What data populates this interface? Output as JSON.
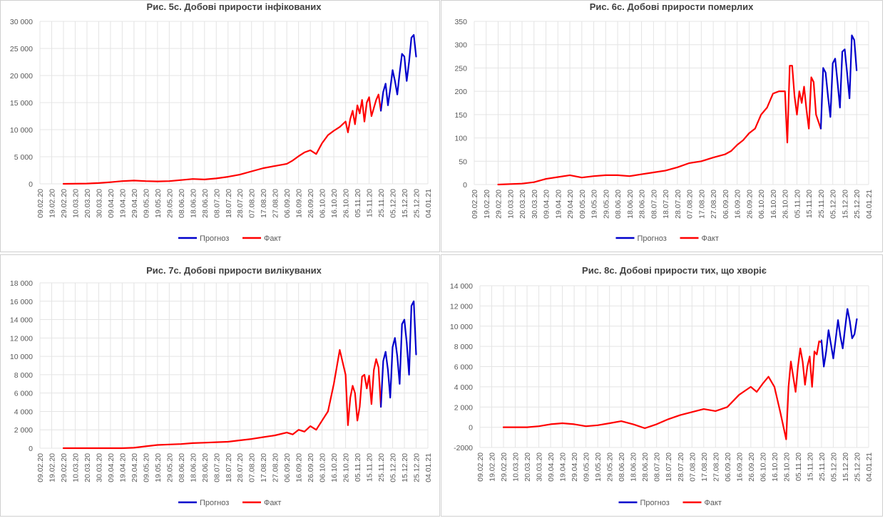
{
  "chart_data": [
    {
      "type": "line",
      "title": "Рис. 5с. Добові прирости інфікованих",
      "x_tick_labels": [
        "09.02.20",
        "19.02.20",
        "29.02.20",
        "10.03.20",
        "20.03.20",
        "30.03.20",
        "09.04.20",
        "19.04.20",
        "29.04.20",
        "09.05.20",
        "19.05.20",
        "29.05.20",
        "08.06.20",
        "18.06.20",
        "28.06.20",
        "08.07.20",
        "18.07.20",
        "28.07.20",
        "07.08.20",
        "17.08.20",
        "27.08.20",
        "06.09.20",
        "16.09.20",
        "26.09.20",
        "06.10.20",
        "16.10.20",
        "26.10.20",
        "05.11.20",
        "15.11.20",
        "25.11.20",
        "05.12.20",
        "15.12.20",
        "25.12.20",
        "04.01.21"
      ],
      "y_tick_labels": [
        "0",
        "5 000",
        "10 000",
        "15 000",
        "20 000",
        "25 000",
        "30 000"
      ],
      "ylim": [
        0,
        30000
      ],
      "series": [
        {
          "name": "Прогноз",
          "color": "#0000cc",
          "x": [
            290,
            292,
            294,
            296,
            298,
            300,
            302,
            304,
            306,
            308,
            310,
            312,
            314,
            316,
            318,
            320
          ],
          "y": [
            13500,
            17000,
            18500,
            14500,
            17500,
            21000,
            19000,
            16500,
            20500,
            24000,
            23500,
            19000,
            22500,
            27000,
            27500,
            23500
          ]
        },
        {
          "name": "Факт",
          "color": "#ff0000",
          "x": [
            20,
            40,
            50,
            60,
            70,
            80,
            90,
            100,
            110,
            120,
            130,
            140,
            150,
            160,
            170,
            180,
            190,
            200,
            210,
            215,
            220,
            225,
            230,
            235,
            240,
            245,
            250,
            255,
            260,
            262,
            264,
            266,
            268,
            270,
            272,
            274,
            276,
            278,
            280,
            282,
            284,
            286,
            288,
            290
          ],
          "y": [
            0,
            50,
            150,
            300,
            500,
            600,
            500,
            450,
            500,
            700,
            900,
            800,
            1000,
            1300,
            1700,
            2300,
            2900,
            3300,
            3700,
            4300,
            5100,
            5800,
            6200,
            5500,
            7500,
            9000,
            9800,
            10500,
            11500,
            9500,
            12000,
            13500,
            11000,
            14500,
            13000,
            15500,
            11500,
            15000,
            16000,
            12500,
            14000,
            15500,
            16500,
            13500
          ]
        }
      ],
      "legend": {
        "position": "bottom",
        "entries": [
          "Прогноз",
          "Факт"
        ]
      }
    },
    {
      "type": "line",
      "title": "Рис. 6с. Добові прирости померлих",
      "x_tick_labels": [
        "09.02.20",
        "19.02.20",
        "29.02.20",
        "10.03.20",
        "20.03.20",
        "30.03.20",
        "09.04.20",
        "19.04.20",
        "29.04.20",
        "09.05.20",
        "19.05.20",
        "29.05.20",
        "08.06.20",
        "18.06.20",
        "28.06.20",
        "08.07.20",
        "18.07.20",
        "28.07.20",
        "07.08.20",
        "17.08.20",
        "27.08.20",
        "06.09.20",
        "16.09.20",
        "26.09.20",
        "06.10.20",
        "16.10.20",
        "26.10.20",
        "05.11.20",
        "15.11.20",
        "25.11.20",
        "05.12.20",
        "15.12.20",
        "25.12.20",
        "04.01.21"
      ],
      "y_tick_labels": [
        "0",
        "50",
        "100",
        "150",
        "200",
        "250",
        "300",
        "350"
      ],
      "ylim": [
        0,
        350
      ],
      "series": [
        {
          "name": "Прогноз",
          "color": "#0000cc",
          "x": [
            290,
            292,
            294,
            296,
            298,
            300,
            302,
            304,
            306,
            308,
            310,
            312,
            314,
            316,
            318,
            320
          ],
          "y": [
            120,
            250,
            240,
            190,
            145,
            260,
            270,
            220,
            165,
            285,
            290,
            240,
            185,
            320,
            310,
            245
          ]
        },
        {
          "name": "Факт",
          "color": "#ff0000",
          "x": [
            20,
            40,
            50,
            60,
            70,
            80,
            90,
            100,
            110,
            120,
            130,
            140,
            150,
            160,
            170,
            180,
            190,
            200,
            210,
            215,
            220,
            225,
            230,
            235,
            240,
            245,
            250,
            255,
            260,
            262,
            264,
            266,
            268,
            270,
            272,
            274,
            276,
            278,
            280,
            282,
            284,
            286,
            288,
            290
          ],
          "y": [
            0,
            2,
            5,
            12,
            16,
            20,
            15,
            18,
            20,
            20,
            18,
            22,
            26,
            30,
            37,
            46,
            50,
            58,
            65,
            72,
            85,
            95,
            110,
            120,
            150,
            165,
            195,
            200,
            200,
            90,
            255,
            255,
            190,
            150,
            200,
            175,
            210,
            160,
            120,
            230,
            220,
            150,
            135,
            120
          ]
        }
      ],
      "legend": {
        "position": "bottom",
        "entries": [
          "Прогноз",
          "Факт"
        ]
      }
    },
    {
      "type": "line",
      "title": "Рис. 7с. Добові прирости вилікуваних",
      "x_tick_labels": [
        "09.02.20",
        "19.02.20",
        "29.02.20",
        "10.03.20",
        "20.03.20",
        "30.03.20",
        "09.04.20",
        "19.04.20",
        "29.04.20",
        "09.05.20",
        "19.05.20",
        "29.05.20",
        "08.06.20",
        "18.06.20",
        "28.06.20",
        "08.07.20",
        "18.07.20",
        "28.07.20",
        "07.08.20",
        "17.08.20",
        "27.08.20",
        "06.09.20",
        "16.09.20",
        "26.09.20",
        "06.10.20",
        "16.10.20",
        "26.10.20",
        "05.11.20",
        "15.11.20",
        "25.11.20",
        "05.12.20",
        "15.12.20",
        "25.12.20",
        "04.01.21"
      ],
      "y_tick_labels": [
        "0",
        "2 000",
        "4 000",
        "6 000",
        "8 000",
        "10 000",
        "12 000",
        "14 000",
        "16 000",
        "18 000"
      ],
      "ylim": [
        0,
        18000
      ],
      "series": [
        {
          "name": "Прогноз",
          "color": "#0000cc",
          "x": [
            290,
            292,
            294,
            296,
            298,
            300,
            302,
            304,
            306,
            308,
            310,
            312,
            314,
            316,
            318,
            320
          ],
          "y": [
            4500,
            9500,
            10500,
            8500,
            5500,
            11000,
            12000,
            10000,
            7000,
            13500,
            14000,
            11500,
            8000,
            15500,
            16000,
            10200
          ]
        },
        {
          "name": "Факт",
          "color": "#ff0000",
          "x": [
            20,
            40,
            50,
            60,
            70,
            80,
            90,
            100,
            110,
            120,
            130,
            140,
            150,
            160,
            170,
            180,
            190,
            200,
            210,
            215,
            220,
            225,
            230,
            235,
            240,
            245,
            250,
            255,
            260,
            262,
            264,
            266,
            268,
            270,
            272,
            274,
            276,
            278,
            280,
            282,
            284,
            286,
            288,
            290
          ],
          "y": [
            0,
            0,
            0,
            0,
            0,
            50,
            200,
            350,
            400,
            450,
            550,
            600,
            650,
            700,
            850,
            1000,
            1200,
            1400,
            1700,
            1500,
            2000,
            1800,
            2400,
            2000,
            3000,
            4000,
            7000,
            10700,
            8000,
            2500,
            5500,
            6800,
            6000,
            3000,
            4500,
            7800,
            8000,
            6500,
            7900,
            4800,
            8500,
            9700,
            8800,
            4500
          ]
        }
      ],
      "legend": {
        "position": "bottom",
        "entries": [
          "Прогноз",
          "Факт"
        ]
      }
    },
    {
      "type": "line",
      "title": "Рис. 8с. Добові прирости тих, що хворіє",
      "x_tick_labels": [
        "09.02.20",
        "19.02.20",
        "29.02.20",
        "10.03.20",
        "20.03.20",
        "30.03.20",
        "09.04.20",
        "19.04.20",
        "29.04.20",
        "09.05.20",
        "19.05.20",
        "29.05.20",
        "08.06.20",
        "18.06.20",
        "28.06.20",
        "08.07.20",
        "18.07.20",
        "28.07.20",
        "07.08.20",
        "17.08.20",
        "27.08.20",
        "06.09.20",
        "16.09.20",
        "26.09.20",
        "06.10.20",
        "16.10.20",
        "26.10.20",
        "05.11.20",
        "15.11.20",
        "25.11.20",
        "05.12.20",
        "15.12.20",
        "25.12.20",
        "04.01.21"
      ],
      "y_tick_labels": [
        "-2000",
        "0",
        "2 000",
        "4 000",
        "6 000",
        "8 000",
        "10 000",
        "12 000",
        "14 000"
      ],
      "ylim": [
        -2000,
        14000
      ],
      "series": [
        {
          "name": "Прогноз",
          "color": "#0000cc",
          "x": [
            290,
            292,
            294,
            296,
            298,
            300,
            302,
            304,
            306,
            308,
            310,
            312,
            314,
            316,
            318,
            320
          ],
          "y": [
            8600,
            6000,
            7500,
            9600,
            8200,
            6800,
            8700,
            10600,
            9000,
            7800,
            9800,
            11700,
            10500,
            8800,
            9200,
            10700
          ]
        },
        {
          "name": "Факт",
          "color": "#ff0000",
          "x": [
            20,
            40,
            50,
            60,
            70,
            80,
            90,
            100,
            110,
            120,
            130,
            140,
            150,
            160,
            170,
            180,
            190,
            200,
            210,
            215,
            220,
            225,
            230,
            235,
            240,
            245,
            250,
            255,
            260,
            262,
            264,
            266,
            268,
            270,
            272,
            274,
            276,
            278,
            280,
            282,
            284,
            286,
            288,
            290
          ],
          "y": [
            0,
            0,
            100,
            300,
            400,
            300,
            100,
            200,
            400,
            600,
            300,
            -100,
            300,
            800,
            1200,
            1500,
            1800,
            1600,
            2000,
            2600,
            3200,
            3600,
            4000,
            3500,
            4300,
            5000,
            4000,
            1500,
            -1200,
            4000,
            6500,
            5000,
            3500,
            6000,
            7800,
            6500,
            4200,
            6000,
            7000,
            4000,
            7500,
            7200,
            8500,
            8400
          ]
        }
      ],
      "legend": {
        "position": "bottom",
        "entries": [
          "Прогноз",
          "Факт"
        ]
      }
    }
  ]
}
